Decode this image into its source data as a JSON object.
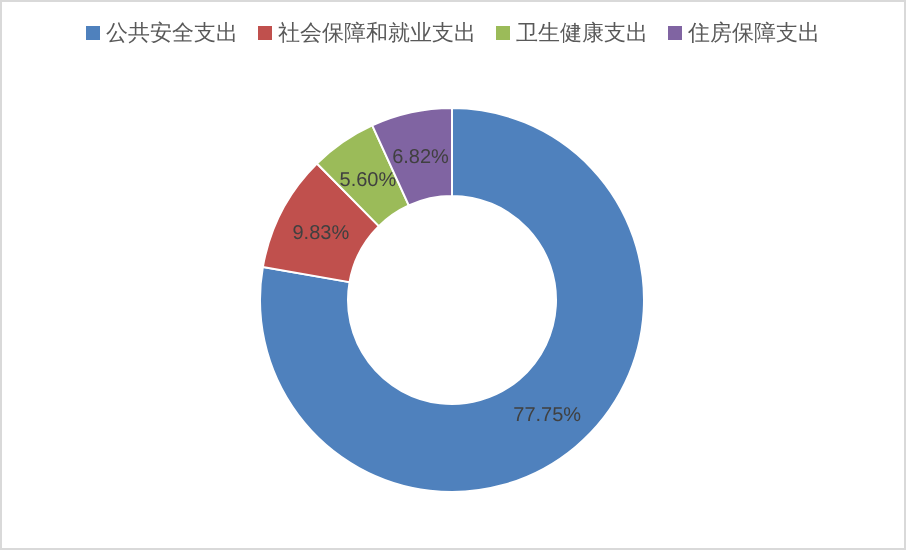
{
  "chart_data": {
    "type": "donut",
    "categories": [
      "公共安全支出",
      "社会保障和就业支出",
      "卫生健康支出",
      "住房保障支出"
    ],
    "values": [
      77.75,
      9.83,
      5.6,
      6.82
    ],
    "colors": [
      "#4f81bd",
      "#c0504d",
      "#9bbb59",
      "#8064a2"
    ],
    "value_labels": [
      "77.75%",
      "9.83%",
      "5.60%",
      "6.82%"
    ],
    "legend": "top"
  }
}
